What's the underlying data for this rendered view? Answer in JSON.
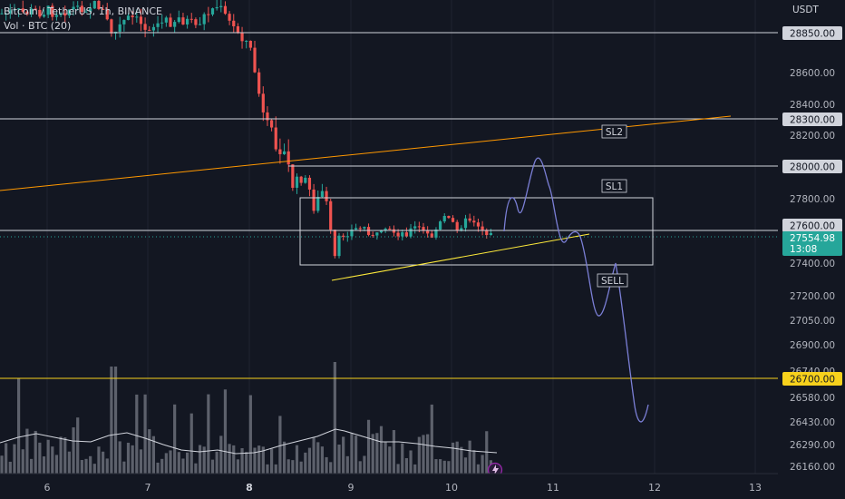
{
  "header": {
    "symbol_line": "Bitcoin / TetherUS, 1h, BINANCE",
    "volume_line": "Vol · BTC (20)",
    "currency": "USDT"
  },
  "price_axis": {
    "ticks": [
      "28600.00",
      "28400.00",
      "28200.00",
      "27800.00",
      "27400.00",
      "27200.00",
      "27050.00",
      "26900.00",
      "26740.00",
      "26580.00",
      "26430.00",
      "26290.00",
      "26160.00"
    ],
    "tag_28850": "28850.00",
    "tag_28300": "28300.00",
    "tag_28000": "28000.00",
    "tag_27600": "27600.00",
    "tag_26700": "26700.00",
    "current_price": "27554.98",
    "countdown": "13:08"
  },
  "time_axis": {
    "labels": [
      "6",
      "7",
      "8",
      "9",
      "10",
      "11",
      "12",
      "13"
    ]
  },
  "annotations": {
    "sl2": "SL2",
    "sl1": "SL1",
    "sell": "SELL"
  },
  "colors": {
    "background": "#131722",
    "up_candle": "#26a69a",
    "down_candle": "#ef5350",
    "trendline_orange": "#ff9800",
    "support_yellow": "#ffeb3b",
    "projection_path": "#7b7fd6",
    "volume_bar": "#6b6f79",
    "current_price_tag": "#26a69a",
    "target_line": "#f7d11c"
  }
}
